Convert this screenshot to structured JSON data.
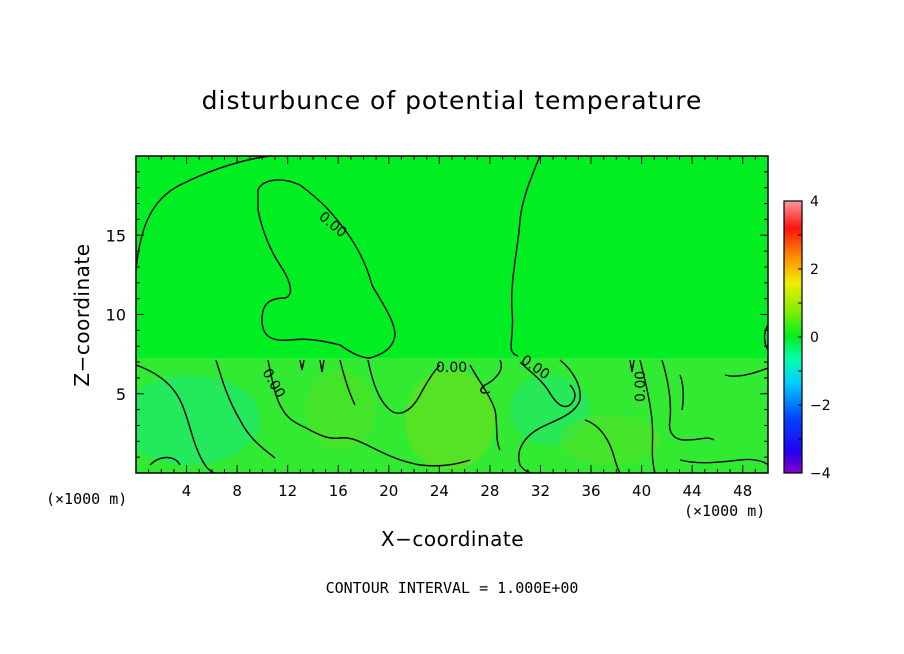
{
  "chart_data": {
    "type": "heatmap",
    "title": "disturbunce of potential temperature",
    "xlabel": "X−coordinate",
    "ylabel": "Z−coordinate",
    "x_unit_left": "(×1000 m)",
    "x_unit_right": "(×1000 m)",
    "xlim": [
      0,
      50
    ],
    "ylim": [
      0,
      20
    ],
    "x_ticks": [
      4,
      8,
      12,
      16,
      20,
      24,
      28,
      32,
      36,
      40,
      44,
      48
    ],
    "y_ticks": [
      5,
      10,
      15
    ],
    "colorbar": {
      "range": [
        -4,
        4
      ],
      "ticks": [
        4,
        2,
        0,
        -2,
        -4
      ]
    },
    "contour_labels": [
      "0.00",
      "0.00",
      "0.00",
      "0.00",
      "0.00"
    ],
    "contour_interval_text": "CONTOUR INTERVAL = 1.000E+00",
    "colors": {
      "field_zero": "#00ee22",
      "field_lower": "#33ee33",
      "field_warm": "#66e622",
      "field_cool": "#22ee66",
      "contour": "#000000"
    }
  }
}
